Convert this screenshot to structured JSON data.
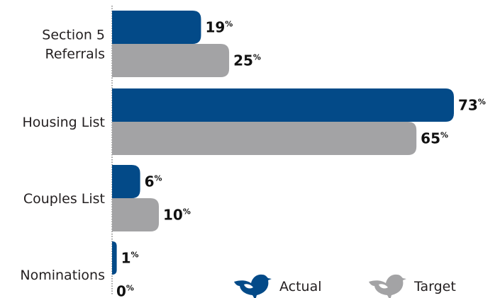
{
  "chart_data": {
    "type": "bar",
    "orientation": "horizontal",
    "categories": [
      [
        "Section 5",
        "Referrals"
      ],
      [
        "Housing List"
      ],
      [
        "Couples List"
      ],
      [
        "Nominations"
      ]
    ],
    "series": [
      {
        "name": "Actual",
        "color": "#034a88",
        "values": [
          19,
          73,
          6,
          1
        ]
      },
      {
        "name": "Target",
        "color": "#a3a3a5",
        "values": [
          25,
          65,
          10,
          0
        ]
      }
    ],
    "value_suffix": "%",
    "xlim": [
      0,
      100
    ],
    "grid": false,
    "legend": "bottom-right",
    "legend_icon": "bird-icon"
  }
}
